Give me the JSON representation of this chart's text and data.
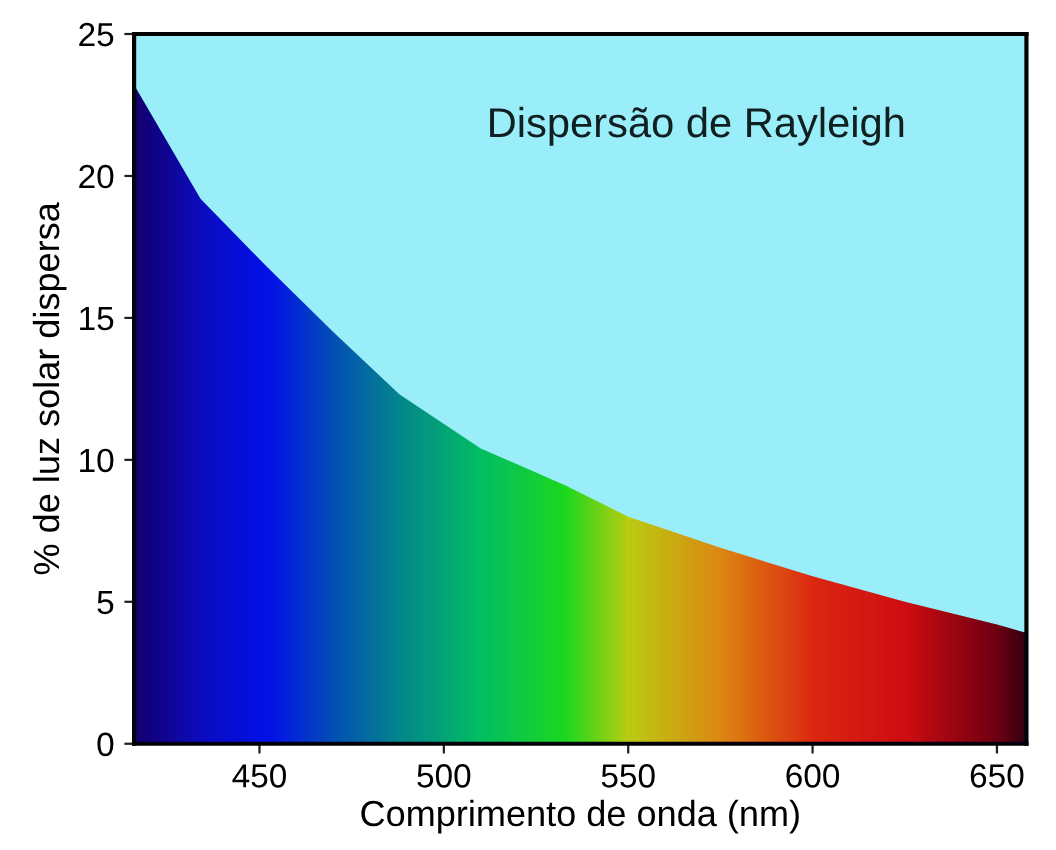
{
  "chart_data": {
    "type": "area",
    "title": "Dispersão de Rayleigh",
    "xlabel": "Comprimento de onda (nm)",
    "ylabel": "% de luz solar dispersa",
    "x": [
      416,
      434,
      452,
      470,
      488,
      510,
      533,
      550,
      575,
      600,
      625,
      650,
      658
    ],
    "values": [
      23.2,
      19.2,
      16.8,
      14.5,
      12.3,
      10.4,
      9.1,
      8.0,
      6.9,
      5.9,
      5.0,
      4.2,
      3.9
    ],
    "colors": [
      "#140070",
      "#0a10d0",
      "#0014ff",
      "#0060c0",
      "#00a090",
      "#00e060",
      "#20ff10",
      "#d8f000",
      "#ffa000",
      "#ff3000",
      "#f01000",
      "#800000",
      "#3a0000"
    ],
    "xlim": [
      416,
      658
    ],
    "ylim": [
      0,
      25
    ],
    "xticks": [
      450,
      500,
      550,
      600,
      650
    ],
    "yticks": [
      0,
      5,
      10,
      15,
      20,
      25
    ],
    "grid": false
  }
}
